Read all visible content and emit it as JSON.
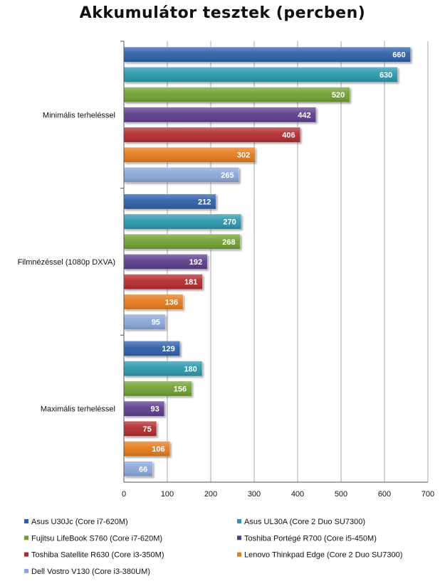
{
  "chart_data": {
    "type": "bar",
    "orientation": "horizontal",
    "title": "Akkumulátor tesztek (percben)",
    "categories": [
      "Minimális terheléssel",
      "Filmnézéssel (1080p DXVA)",
      "Maximális terheléssel"
    ],
    "series": [
      {
        "name": "Asus U30Jc (Core i7-620M)",
        "color": "#2e5fa8",
        "values": [
          660,
          212,
          129
        ]
      },
      {
        "name": "Asus UL30A (Core 2 Duo SU7300)",
        "color": "#2a97ad",
        "values": [
          630,
          270,
          180
        ]
      },
      {
        "name": "Fujitsu LifeBook S760 (Core i7-620M)",
        "color": "#6fa032",
        "values": [
          520,
          268,
          156
        ]
      },
      {
        "name": "Toshiba Portégé R700 (Core i5-450M)",
        "color": "#5b3c8c",
        "values": [
          442,
          192,
          93
        ]
      },
      {
        "name": "Toshiba Satellite R630 (Core i3-350M)",
        "color": "#b12a2e",
        "values": [
          406,
          181,
          75
        ]
      },
      {
        "name": "Lenovo Thinkpad Edge (Core 2 Duo SU7300)",
        "color": "#e47a1a",
        "values": [
          302,
          136,
          106
        ]
      },
      {
        "name": "Dell Vostro V130 (Core i3-380UM)",
        "color": "#8aa6d9",
        "values": [
          265,
          95,
          66
        ]
      }
    ],
    "xlim": [
      0,
      700
    ],
    "xticks": [
      "0",
      "100",
      "200",
      "300",
      "400",
      "500",
      "600",
      "700"
    ],
    "grid": true,
    "legend_position": "bottom"
  }
}
